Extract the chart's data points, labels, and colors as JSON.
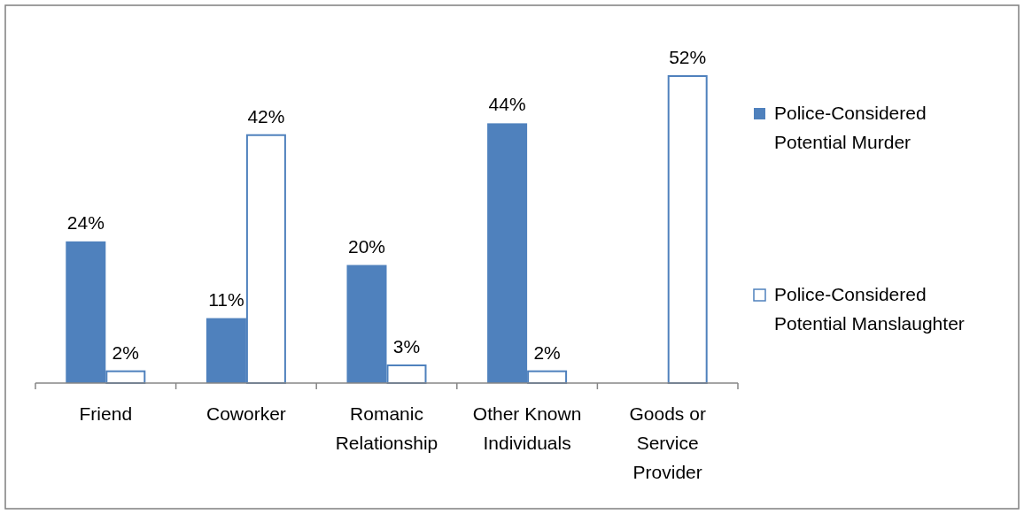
{
  "chart_data": {
    "type": "bar",
    "categories": [
      "Friend",
      "Coworker",
      "Romanic Relationship",
      "Other Known Individuals",
      "Goods or Service Provider"
    ],
    "series": [
      {
        "name": "Police-Considered Potential Murder",
        "color": "#4f81bd",
        "values": [
          24,
          11,
          20,
          44,
          null
        ],
        "value_labels": [
          "24%",
          "11%",
          "20%",
          "44%",
          null
        ]
      },
      {
        "name": "Police-Considered Potential Manslaughter",
        "color": "#4f81bd",
        "values": [
          2,
          42,
          3,
          2,
          52
        ],
        "value_labels": [
          "2%",
          "42%",
          "3%",
          "2%",
          "52%"
        ]
      }
    ],
    "legend": "right",
    "grid": false
  }
}
